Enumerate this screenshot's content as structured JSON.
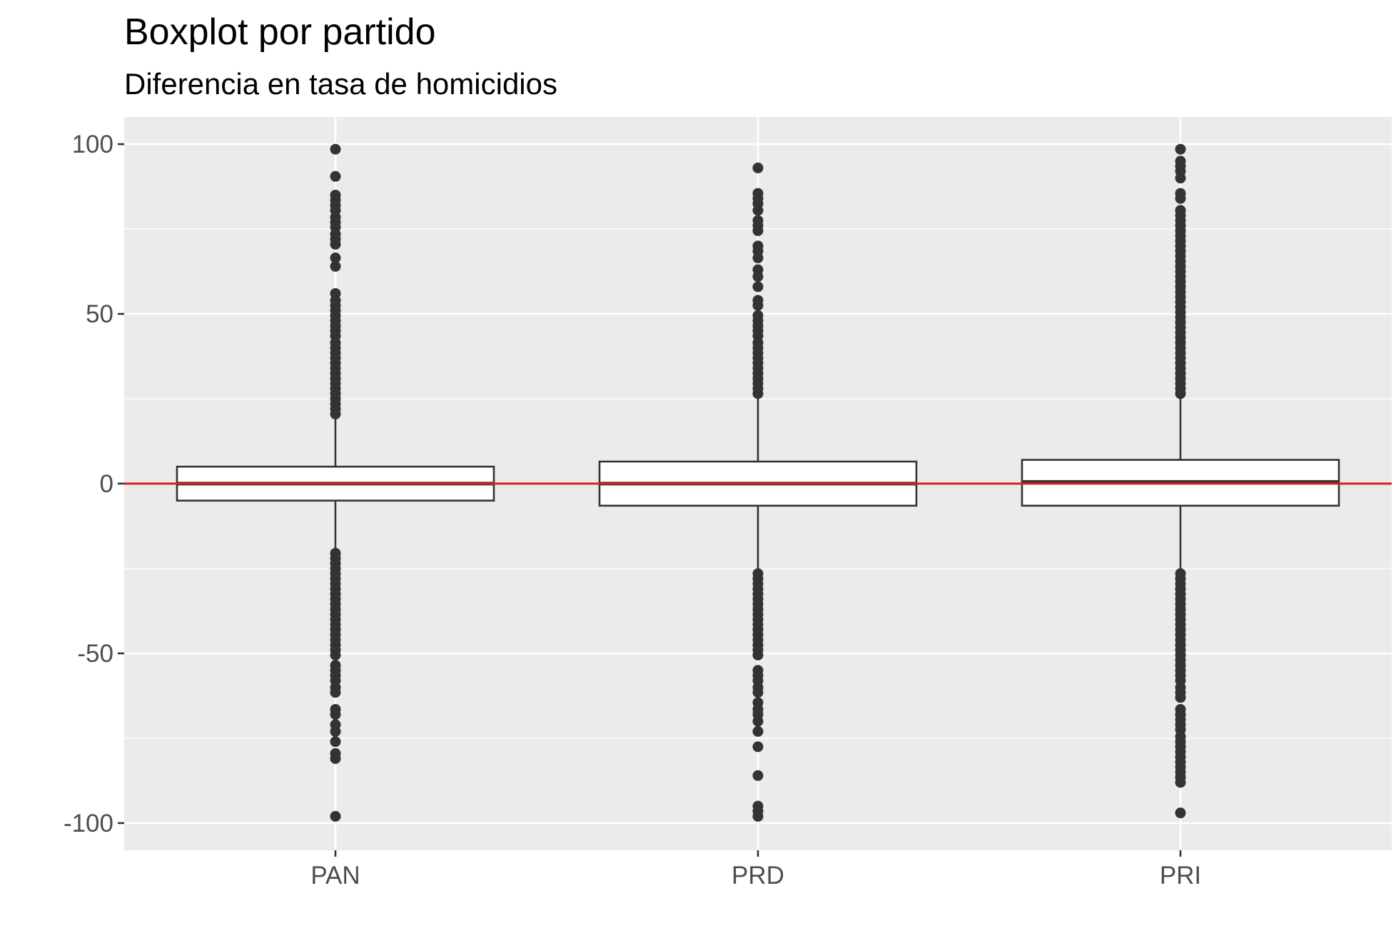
{
  "chart_data": {
    "type": "boxplot",
    "title": "Boxplot por partido",
    "subtitle": "Diferencia en tasa de homicidios",
    "xlabel": "",
    "ylabel": "",
    "categories": [
      "PAN",
      "PRD",
      "PRI"
    ],
    "ylim": [
      -108,
      108
    ],
    "yticks": [
      -100,
      -50,
      0,
      50,
      100
    ],
    "ytick_labels": [
      "-100",
      "-50",
      "0",
      "50",
      "100"
    ],
    "grid": true,
    "reference_line": {
      "y": 0,
      "color": "#e31a1c"
    },
    "boxes": [
      {
        "category": "PAN",
        "q1": -5,
        "median": 0,
        "q3": 5,
        "whisker_low": -19.5,
        "whisker_high": 19.5,
        "outliers": [
          98.5,
          90.5,
          85,
          83.5,
          82,
          80.5,
          78.5,
          77,
          75.5,
          73.5,
          72,
          70.5,
          66.5,
          64,
          56,
          54,
          52.5,
          51,
          49.5,
          48,
          46.5,
          45,
          43.5,
          41.5,
          40,
          38.5,
          37,
          35.5,
          34,
          32.5,
          31,
          29.5,
          28,
          26.5,
          25,
          23.5,
          22,
          20.5,
          -20.5,
          -22,
          -23.5,
          -25,
          -26.5,
          -28,
          -29.5,
          -31,
          -32.5,
          -34,
          -35.5,
          -37,
          -38.5,
          -40,
          -41.5,
          -43,
          -44.5,
          -46,
          -47.5,
          -49,
          -50.5,
          -53.5,
          -55,
          -56.5,
          -58,
          -60,
          -61.5,
          -66.5,
          -68,
          -71,
          -73,
          -76,
          -79.5,
          -81,
          -98
        ]
      },
      {
        "category": "PRD",
        "q1": -6.5,
        "median": 0,
        "q3": 6.5,
        "whisker_low": -26,
        "whisker_high": 26,
        "outliers": [
          93,
          85.5,
          84,
          82.5,
          80.5,
          77.5,
          76,
          74.5,
          70,
          68.5,
          66.5,
          63,
          61,
          58,
          54,
          52.5,
          49.5,
          48,
          46.5,
          45,
          43.5,
          41.5,
          40,
          38.5,
          37,
          35.5,
          34,
          32.5,
          31,
          29.5,
          28,
          26.5,
          -26.5,
          -28,
          -29.5,
          -31,
          -32.5,
          -34,
          -35.5,
          -37,
          -38.5,
          -40,
          -41.5,
          -43,
          -44.5,
          -46,
          -47.5,
          -49,
          -50.5,
          -55,
          -56.5,
          -58,
          -60,
          -61.5,
          -64.5,
          -66.5,
          -68,
          -70,
          -73,
          -77.5,
          -86,
          -95,
          -96.5,
          -98
        ]
      },
      {
        "category": "PRI",
        "q1": -6.5,
        "median": 0.5,
        "q3": 7,
        "whisker_low": -26,
        "whisker_high": 26,
        "outliers": [
          98.5,
          95,
          93.5,
          92,
          90,
          85.5,
          84,
          80.5,
          79,
          77.5,
          76,
          74.5,
          73,
          71.5,
          70,
          68.5,
          67,
          65.5,
          64,
          62.5,
          61,
          59.5,
          58,
          56.5,
          55,
          53.5,
          52,
          50.5,
          49,
          47.5,
          46,
          44.5,
          43,
          41.5,
          40,
          38.5,
          37,
          35.5,
          34,
          32.5,
          31,
          29.5,
          28,
          26.5,
          -26.5,
          -28,
          -29.5,
          -31,
          -32.5,
          -34,
          -35.5,
          -37,
          -38.5,
          -40,
          -41.5,
          -43,
          -44.5,
          -46,
          -47.5,
          -49,
          -50.5,
          -52,
          -53.5,
          -55,
          -56.5,
          -58,
          -60,
          -61.5,
          -63,
          -66.5,
          -68,
          -69.5,
          -71,
          -72.5,
          -74.5,
          -76,
          -77.5,
          -79,
          -80.5,
          -82,
          -83.5,
          -85,
          -86.5,
          -88,
          -97
        ]
      }
    ],
    "colors": {
      "panel_bg": "#ebebeb",
      "grid_major": "#ffffff",
      "box_fill": "#ffffff",
      "box_line": "#333333",
      "point": "#333333",
      "tick_text": "#4d4d4d",
      "tick_mark": "#333333"
    }
  }
}
